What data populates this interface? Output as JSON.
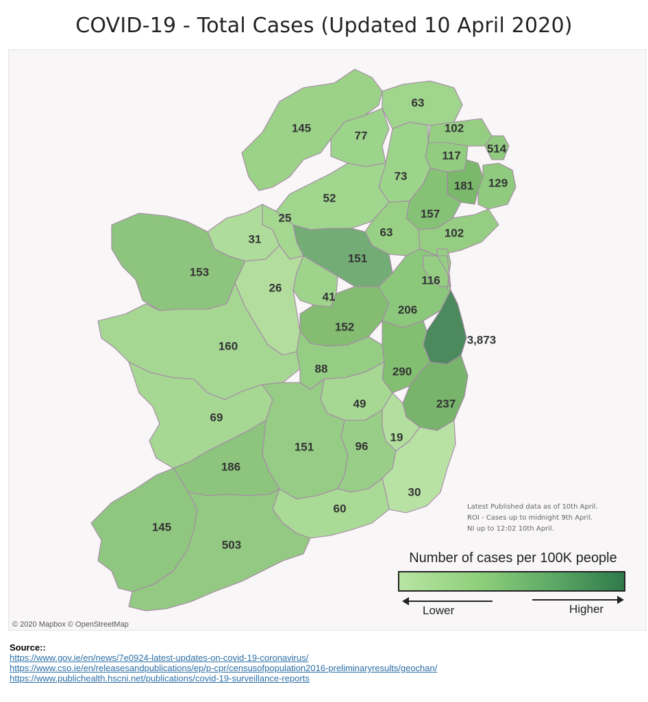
{
  "title": "COVID-19 - Total Cases  (Updated 10 April 2020)",
  "map": {
    "attribution": "© 2020 Mapbox © OpenStreetMap",
    "notes": [
      "Latest Published data as of 10th April.",
      "ROI - Cases up to midnight 9th April.",
      "NI up to 12:02 10th April."
    ],
    "colors": {
      "border": "#a785a8",
      "background": "#f8f6f6",
      "sea": "#f8f6f6"
    },
    "regions": [
      {
        "name": "Donegal",
        "value": "145",
        "color": "#9bd288"
      },
      {
        "name": "Derry and Strabane",
        "value": "77",
        "color": "#9dd48b"
      },
      {
        "name": "Causeway Coast and Glens",
        "value": "63",
        "color": "#9fd58c"
      },
      {
        "name": "Mid and East Antrim",
        "value": "102",
        "color": "#95ce83"
      },
      {
        "name": "Antrim and Newtownabbey",
        "value": "117",
        "color": "#92cc80"
      },
      {
        "name": "Belfast",
        "value": "181",
        "color": "#7ab86c"
      },
      {
        "name": "Ards and North Down",
        "value": "129",
        "color": "#8fca7e"
      },
      {
        "name": "Lisburn and Castlereagh",
        "value": "514",
        "color": "#90cb7f"
      },
      {
        "name": "Mid Ulster",
        "value": "73",
        "color": "#9dd48b"
      },
      {
        "name": "Fermanagh and Omagh",
        "value": "52",
        "color": "#a0d68e"
      },
      {
        "name": "Armagh, Banbridge and Craigavon",
        "value": "157",
        "color": "#86c276"
      },
      {
        "name": "Newry, Mourne and Down",
        "value": "102",
        "color": "#95ce83"
      },
      {
        "name": "Monaghan",
        "value": "63",
        "color": "#98d085"
      },
      {
        "name": "Cavan",
        "value": "151",
        "color": "#74ac76"
      },
      {
        "name": "Leitrim",
        "value": "25",
        "color": "#a4d890"
      },
      {
        "name": "Sligo",
        "value": "31",
        "color": "#aedc9a"
      },
      {
        "name": "Mayo",
        "value": "153",
        "color": "#8ec57e"
      },
      {
        "name": "Roscommon",
        "value": "26",
        "color": "#b2dd9d"
      },
      {
        "name": "Longford",
        "value": "41",
        "color": "#9dd38b"
      },
      {
        "name": "Westmeath",
        "value": "152",
        "color": "#84bd72"
      },
      {
        "name": "Meath",
        "value": "206",
        "color": "#8bc87c"
      },
      {
        "name": "Louth",
        "value": "116",
        "color": "#96ce84"
      },
      {
        "name": "Dublin",
        "value": "3,873",
        "color": "#4c8a5e"
      },
      {
        "name": "Galway",
        "value": "160",
        "color": "#a5d793"
      },
      {
        "name": "Offaly",
        "value": "88",
        "color": "#95cd84"
      },
      {
        "name": "Kildare",
        "value": "290",
        "color": "#82bf71"
      },
      {
        "name": "Wicklow",
        "value": "237",
        "color": "#78b46c"
      },
      {
        "name": "Laois",
        "value": "49",
        "color": "#a6d893"
      },
      {
        "name": "Carlow",
        "value": "19",
        "color": "#b2df9d"
      },
      {
        "name": "Clare",
        "value": "69",
        "color": "#a6d893"
      },
      {
        "name": "Tipperary",
        "value": "151",
        "color": "#97cc86"
      },
      {
        "name": "Kilkenny",
        "value": "96",
        "color": "#98ce87"
      },
      {
        "name": "Wexford",
        "value": "30",
        "color": "#b8e2a4"
      },
      {
        "name": "Limerick",
        "value": "186",
        "color": "#8ec57e"
      },
      {
        "name": "Waterford",
        "value": "60",
        "color": "#aadb96"
      },
      {
        "name": "Kerry",
        "value": "145",
        "color": "#90c780"
      },
      {
        "name": "Cork",
        "value": "503",
        "color": "#93c982"
      }
    ]
  },
  "legend": {
    "title": "Number of cases per 100K people",
    "lower": "Lower",
    "higher": "Higher",
    "color_low": "#b8e4a3",
    "color_high": "#2f7a4a"
  },
  "source": {
    "heading": "Source::",
    "links": [
      "https://www.gov.ie/en/news/7e0924-latest-updates-on-covid-19-coronavirus/",
      "https://www.cso.ie/en/releasesandpublications/ep/p-cpr/censusofpopulation2016-preliminaryresults/geochan/",
      "https://www.publichealth.hscni.net/publications/covid-19-surveillance-reports"
    ]
  }
}
